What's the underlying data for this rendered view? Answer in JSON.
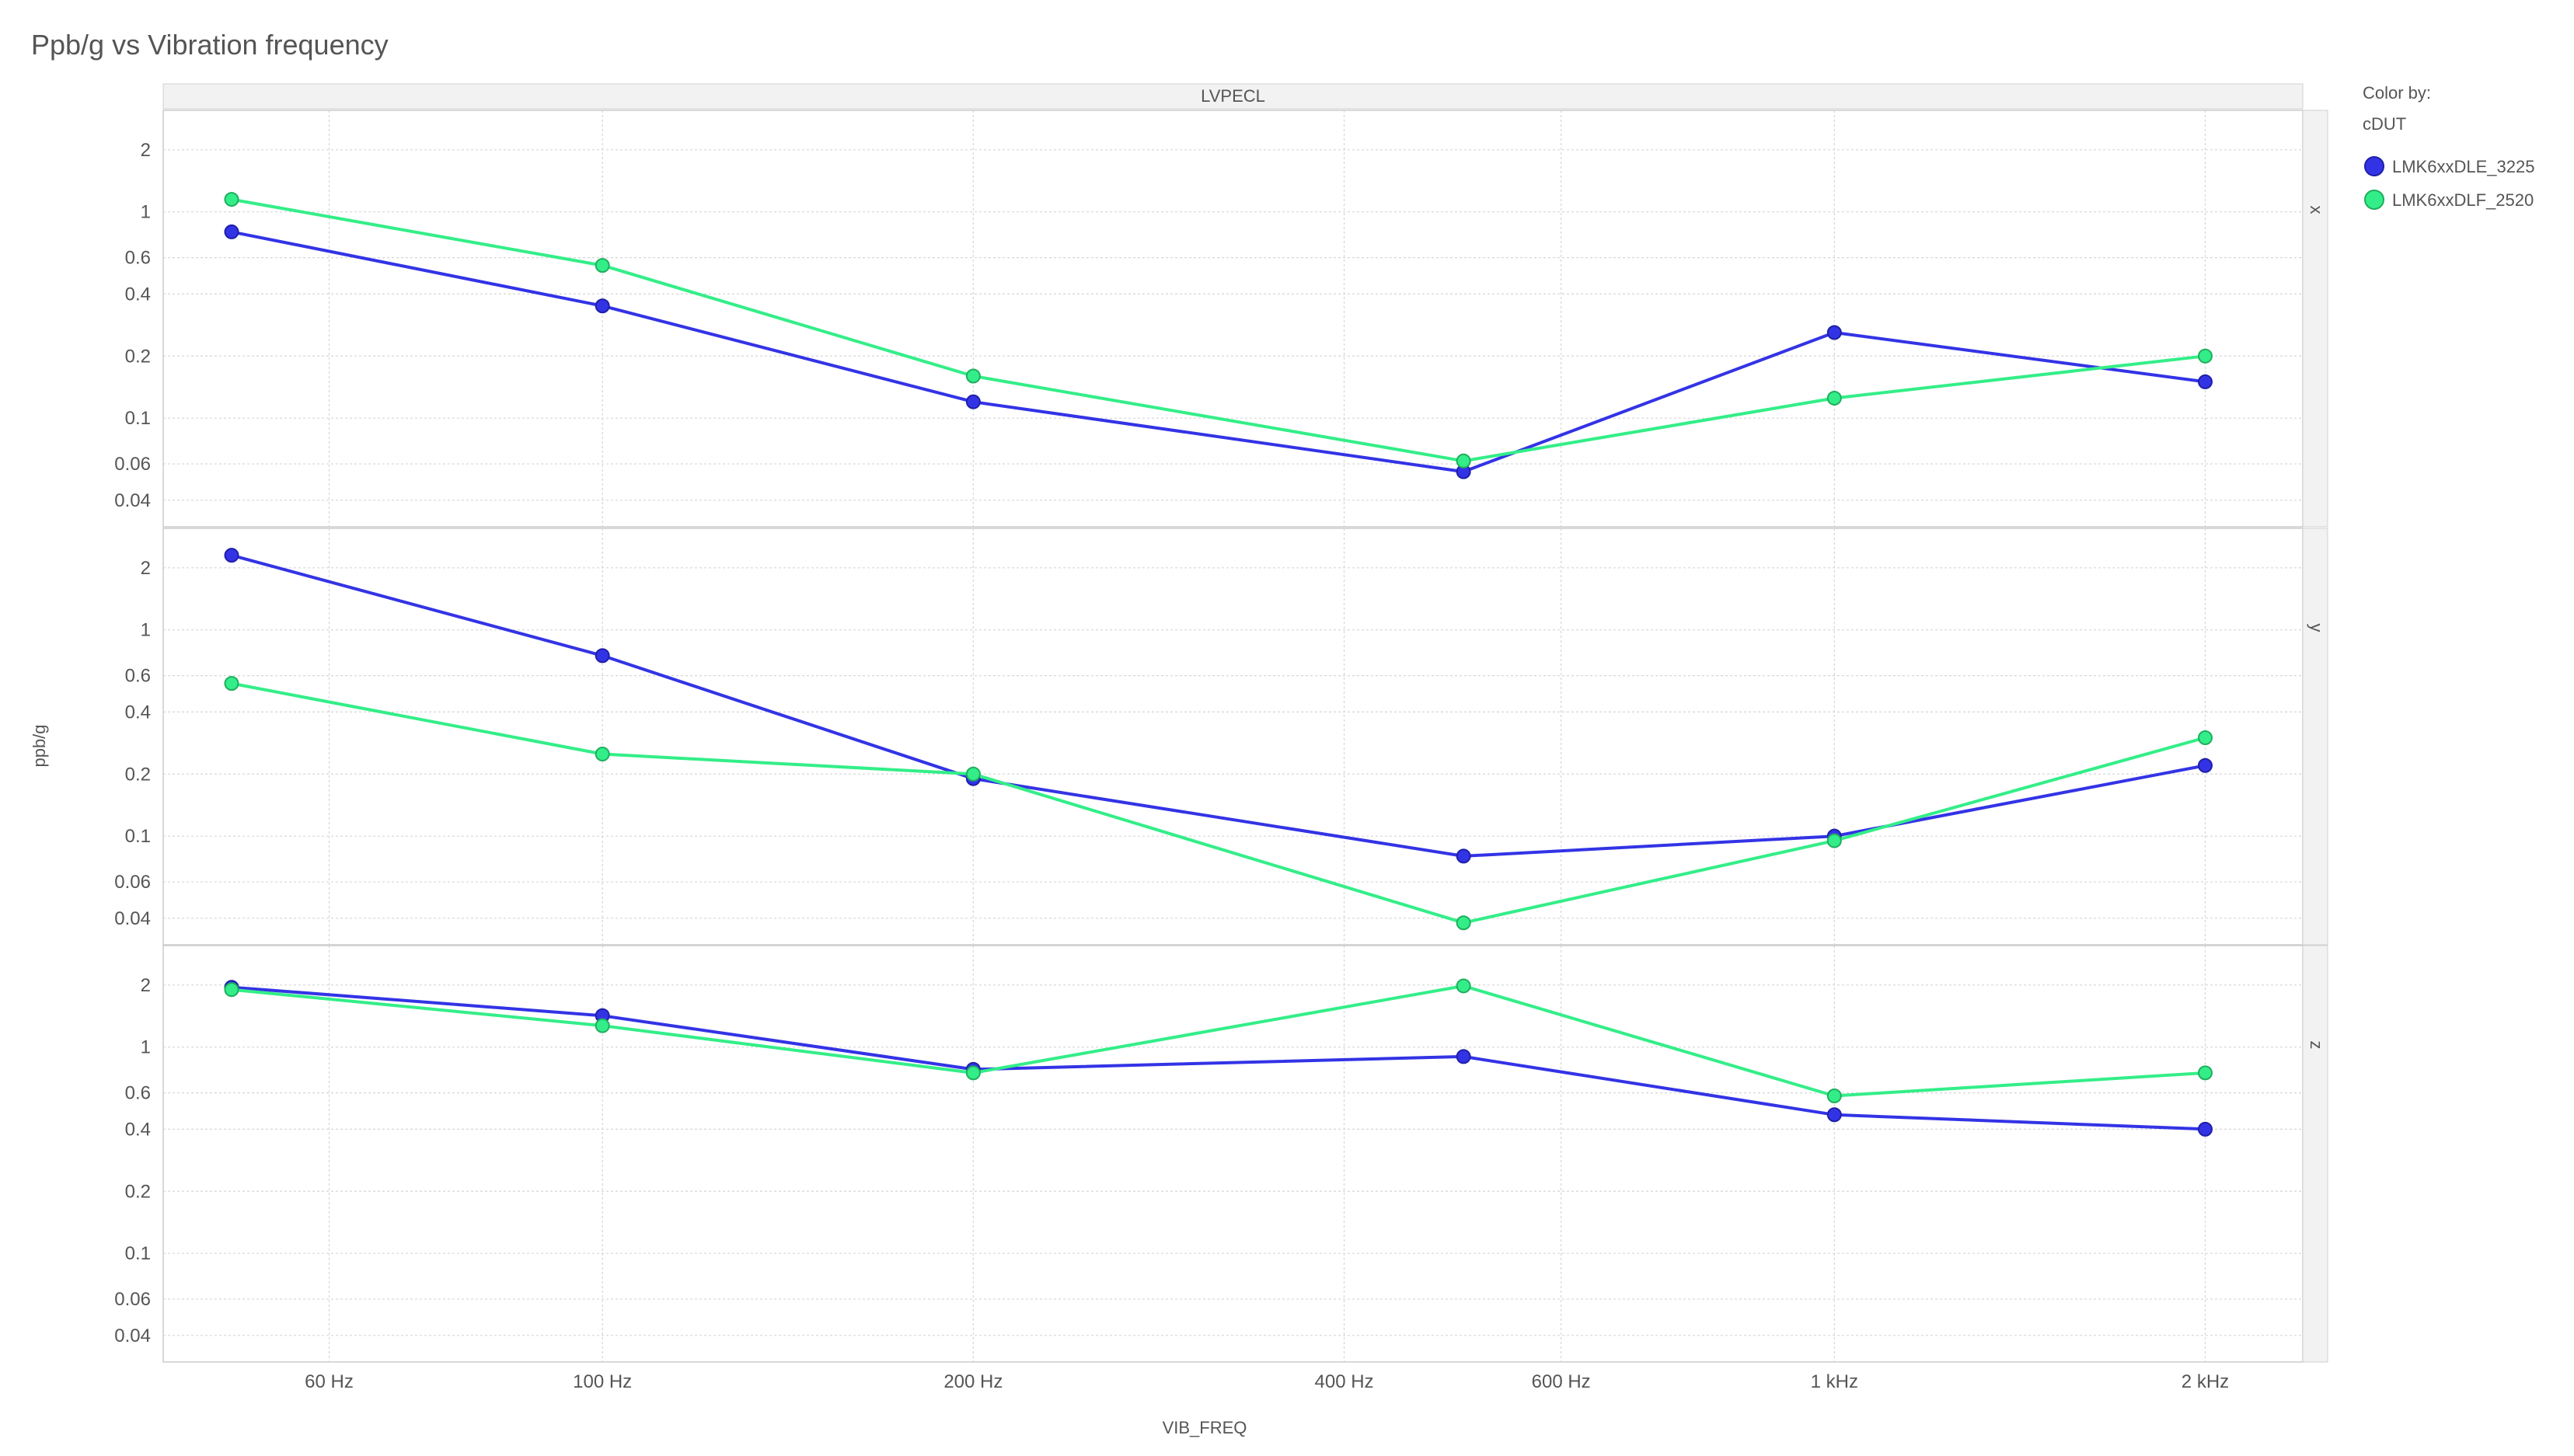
{
  "chart_data": {
    "type": "line",
    "title": "Ppb/g vs Vibration frequency",
    "xlabel": "VIB_FREQ",
    "ylabel": "ppb/g",
    "x_scale": "log",
    "y_scale": "log",
    "xlim": [
      44,
      2400
    ],
    "ylim": [
      0.033,
      2.8
    ],
    "column_facet": "LVPECL",
    "row_facets": [
      "x",
      "y",
      "z"
    ],
    "x_ticks": [
      {
        "value": 60,
        "label": "60 Hz"
      },
      {
        "value": 100,
        "label": "100 Hz"
      },
      {
        "value": 200,
        "label": "200 Hz"
      },
      {
        "value": 400,
        "label": "400 Hz"
      },
      {
        "value": 600,
        "label": "600 Hz"
      },
      {
        "value": 1000,
        "label": "1 kHz"
      },
      {
        "value": 2000,
        "label": "2 kHz"
      }
    ],
    "y_ticks": [
      {
        "value": 2,
        "label": "2"
      },
      {
        "value": 1,
        "label": "1"
      },
      {
        "value": 0.6,
        "label": "0.6"
      },
      {
        "value": 0.4,
        "label": "0.4"
      },
      {
        "value": 0.2,
        "label": "0.2"
      },
      {
        "value": 0.1,
        "label": "0.1"
      },
      {
        "value": 0.06,
        "label": "0.06"
      },
      {
        "value": 0.04,
        "label": "0.04"
      }
    ],
    "x": [
      50,
      100,
      200,
      500,
      1000,
      2000
    ],
    "legend": {
      "title": "Color by:",
      "subtitle": "cDUT",
      "placement": "right"
    },
    "grid": true,
    "series": [
      {
        "name": "LMK6xxDLE_3225",
        "color": "#3333e6",
        "facets": {
          "x": [
            0.8,
            0.35,
            0.12,
            0.055,
            0.26,
            0.15
          ],
          "y": [
            2.3,
            0.75,
            0.19,
            0.08,
            0.1,
            0.22
          ],
          "z": [
            1.95,
            1.42,
            0.78,
            0.9,
            0.47,
            0.4
          ]
        }
      },
      {
        "name": "LMK6xxDLF_2520",
        "color": "#33ee88",
        "facets": {
          "x": [
            1.15,
            0.55,
            0.16,
            0.062,
            0.125,
            0.2
          ],
          "y": [
            0.55,
            0.25,
            0.2,
            0.038,
            0.095,
            0.3
          ],
          "z": [
            1.9,
            1.27,
            0.75,
            1.98,
            0.58,
            0.75
          ]
        }
      }
    ]
  }
}
